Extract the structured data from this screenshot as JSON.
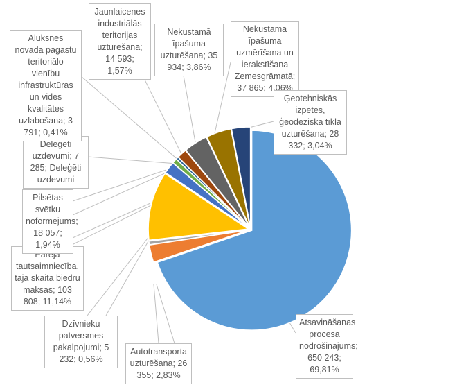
{
  "chart_data": {
    "type": "pie",
    "title": "",
    "start_angle_deg": 0,
    "direction": "clockwise",
    "slices": [
      {
        "name": "Atsavināšanas procesa nodrošinājums",
        "value": 650243,
        "percent": 69.81,
        "label": "Atsavināšanas procesa nodrošinājums; 650 243; 69,81%",
        "color": "#5B9BD5"
      },
      {
        "name": "Autotransporta uzturēšana",
        "value": 26355,
        "percent": 2.83,
        "label": "Autotransporta uzturēšana; 26 355; 2,83%",
        "color": "#ED7D31"
      },
      {
        "name": "Dzīvnieku patversmes pakalpojumi",
        "value": 5232,
        "percent": 0.56,
        "label": "Dzīvnieku patversmes pakalpojumi; 5 232; 0,56%",
        "color": "#A5A5A5"
      },
      {
        "name": "Pārējā tautsaimniecība, tajā skaitā biedru maksas",
        "value": 103808,
        "percent": 11.14,
        "label": "Pārējā tautsaimniecība, tajā skaitā biedru maksas; 103 808; 11,14%",
        "color": "#FFC000"
      },
      {
        "name": "Pilsētas svētku noformējums",
        "value": 18057,
        "percent": 1.94,
        "label": "Pilsētas svētku noformējums; 18 057; 1,94%",
        "color": "#4472C4"
      },
      {
        "name": "Deleģēti uzdevumi",
        "value": 7285,
        "percent": 0.78,
        "label": "Deleģēti uzdevumi; 7 285; Deleģēti uzdevumi",
        "color": "#70AD47"
      },
      {
        "name": "Alūksnes novada pagastu teritoriālo vienību infrastruktūras un vides kvalitātes uzlabošana",
        "value": 3791,
        "percent": 0.41,
        "label": "Alūksnes novada pagastu teritoriālo vienību infrastruktūras un vides kvalitātes uzlabošana; 3 791; 0,41%",
        "color": "#255E91"
      },
      {
        "name": "Jaunlaicenes industriālās teritorijas uzturēšana",
        "value": 14593,
        "percent": 1.57,
        "label": "Jaunlaicenes industriālās teritorijas uzturēšana; 14 593; 1,57%",
        "color": "#9E480E"
      },
      {
        "name": "Nekustamā īpašuma uzturēšana",
        "value": 35934,
        "percent": 3.86,
        "label": "Nekustamā īpašuma uzturēšana; 35 934; 3,86%",
        "color": "#636363"
      },
      {
        "name": "Nekustamā īpašuma uzmērīšana un ierakstīšana Zemesgrāmatā",
        "value": 37865,
        "percent": 4.06,
        "label": "Nekustamā īpašuma uzmērīšana un ierakstīšana Zemesgrāmatā; 37 865; 4,06%",
        "color": "#997300"
      },
      {
        "name": "Ģeotehniskās izpētes, ģeodēziskā tīkla uzturēšana",
        "value": 28332,
        "percent": 3.04,
        "label": "Ģeotehniskās izpētes, ģeodēziskā tīkla uzturēšana; 28 332; 3,04%",
        "color": "#264478"
      }
    ]
  }
}
